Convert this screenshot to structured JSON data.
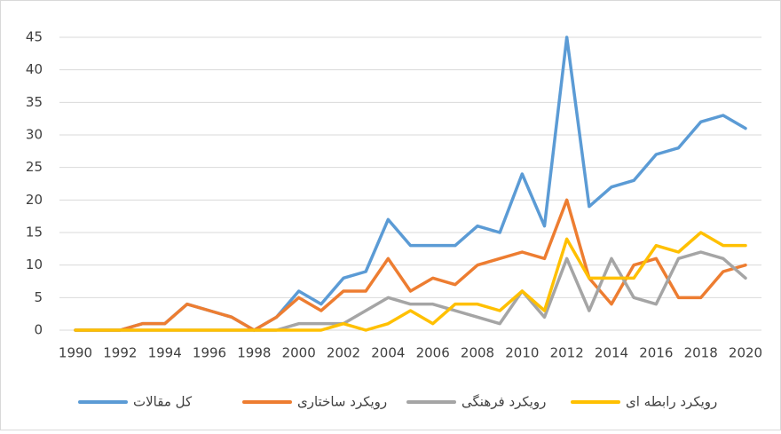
{
  "chart_data": {
    "type": "line",
    "x": [
      1990,
      1991,
      1992,
      1993,
      1994,
      1995,
      1996,
      1997,
      1998,
      1999,
      2000,
      2001,
      2002,
      2003,
      2004,
      2005,
      2006,
      2007,
      2008,
      2009,
      2010,
      2011,
      2012,
      2013,
      2014,
      2015,
      2016,
      2017,
      2018,
      2019,
      2020
    ],
    "xlim": [
      1990,
      2020
    ],
    "xticks": [
      1990,
      1992,
      1994,
      1996,
      1998,
      2000,
      2002,
      2004,
      2006,
      2008,
      2010,
      2012,
      2014,
      2016,
      2018,
      2020
    ],
    "ylim": [
      0,
      45
    ],
    "yticks": [
      0,
      5,
      10,
      15,
      20,
      25,
      30,
      35,
      40,
      45
    ],
    "grid": true,
    "legend": "bottom",
    "series": [
      {
        "name": "کل مقالات",
        "color": "#5b9bd5",
        "values": [
          0,
          0,
          0,
          1,
          1,
          4,
          3,
          2,
          0,
          2,
          6,
          4,
          8,
          9,
          17,
          13,
          13,
          13,
          16,
          15,
          24,
          16,
          45,
          19,
          22,
          23,
          27,
          28,
          32,
          33,
          31
        ]
      },
      {
        "name": "رویکرد ساختاری",
        "color": "#ed7d31",
        "values": [
          0,
          0,
          0,
          1,
          1,
          4,
          3,
          2,
          0,
          2,
          5,
          3,
          6,
          6,
          11,
          6,
          8,
          7,
          10,
          11,
          12,
          11,
          20,
          8,
          4,
          10,
          11,
          5,
          5,
          9,
          10
        ]
      },
      {
        "name": "رویکرد فرهنگی",
        "color": "#a5a5a5",
        "values": [
          0,
          0,
          0,
          0,
          0,
          0,
          0,
          0,
          0,
          0,
          1,
          1,
          1,
          3,
          5,
          4,
          4,
          3,
          2,
          1,
          6,
          2,
          11,
          3,
          11,
          5,
          4,
          11,
          12,
          11,
          8
        ]
      },
      {
        "name": "رویکرد رابطه ای",
        "color": "#ffc000",
        "values": [
          0,
          0,
          0,
          0,
          0,
          0,
          0,
          0,
          0,
          0,
          0,
          0,
          1,
          0,
          1,
          3,
          1,
          4,
          4,
          3,
          6,
          3,
          14,
          8,
          8,
          8,
          13,
          12,
          15,
          13,
          13
        ]
      }
    ]
  }
}
